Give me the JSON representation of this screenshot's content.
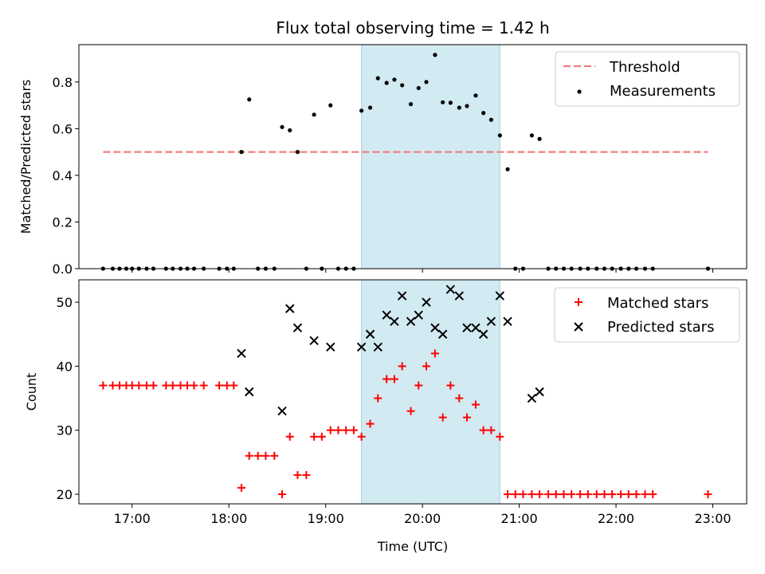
{
  "title": "Flux total observing time = 1.42 h",
  "colors": {
    "threshold": "#f08080",
    "measurement": "#000000",
    "matched": "#ff0000",
    "predicted": "#000000",
    "band": "#add8e6"
  },
  "chart_data": [
    {
      "type": "scatter",
      "name": "top",
      "ylabel": "Matched/Predicted stars",
      "xlim_hours": [
        16.45,
        23.35
      ],
      "ylim": [
        0,
        0.96
      ],
      "yticks": [
        0.0,
        0.2,
        0.4,
        0.6,
        0.8
      ],
      "ytick_labels": [
        "0.0",
        "0.2",
        "0.4",
        "0.6",
        "0.8"
      ],
      "shaded_band_hours": [
        19.37,
        20.8
      ],
      "threshold": {
        "label": "Threshold",
        "y": 0.5,
        "x_range_hours": [
          16.7,
          22.95
        ]
      },
      "legend": {
        "position": "top-right",
        "entries": [
          "Threshold",
          "Measurements"
        ]
      },
      "series": [
        {
          "name": "Measurements",
          "marker": "dot",
          "points": [
            [
              16.7,
              0
            ],
            [
              16.8,
              0
            ],
            [
              16.87,
              0
            ],
            [
              16.94,
              0
            ],
            [
              17.0,
              0
            ],
            [
              17.07,
              0
            ],
            [
              17.15,
              0
            ],
            [
              17.22,
              0
            ],
            [
              17.35,
              0
            ],
            [
              17.42,
              0
            ],
            [
              17.5,
              0
            ],
            [
              17.57,
              0
            ],
            [
              17.64,
              0
            ],
            [
              17.74,
              0
            ],
            [
              17.9,
              0
            ],
            [
              17.98,
              0
            ],
            [
              18.05,
              0
            ],
            [
              18.13,
              0.5
            ],
            [
              18.21,
              0.725
            ],
            [
              18.3,
              0
            ],
            [
              18.38,
              0
            ],
            [
              18.47,
              0
            ],
            [
              18.55,
              0.607
            ],
            [
              18.63,
              0.593
            ],
            [
              18.71,
              0.5
            ],
            [
              18.8,
              0
            ],
            [
              18.88,
              0.66
            ],
            [
              18.96,
              0
            ],
            [
              19.05,
              0.7
            ],
            [
              19.13,
              0
            ],
            [
              19.21,
              0
            ],
            [
              19.29,
              0
            ],
            [
              19.37,
              0.677
            ],
            [
              19.46,
              0.69
            ],
            [
              19.54,
              0.816
            ],
            [
              19.63,
              0.796
            ],
            [
              19.71,
              0.81
            ],
            [
              19.79,
              0.786
            ],
            [
              19.88,
              0.705
            ],
            [
              19.96,
              0.774
            ],
            [
              20.04,
              0.8
            ],
            [
              20.13,
              0.916
            ],
            [
              20.21,
              0.713
            ],
            [
              20.29,
              0.711
            ],
            [
              20.38,
              0.69
            ],
            [
              20.46,
              0.697
            ],
            [
              20.55,
              0.742
            ],
            [
              20.63,
              0.667
            ],
            [
              20.71,
              0.638
            ],
            [
              20.8,
              0.571
            ],
            [
              20.88,
              0.426
            ],
            [
              20.96,
              0
            ],
            [
              21.04,
              0
            ],
            [
              21.13,
              0.571
            ],
            [
              21.21,
              0.556
            ],
            [
              21.3,
              0
            ],
            [
              21.38,
              0
            ],
            [
              21.46,
              0
            ],
            [
              21.54,
              0
            ],
            [
              21.63,
              0
            ],
            [
              21.71,
              0
            ],
            [
              21.8,
              0
            ],
            [
              21.88,
              0
            ],
            [
              21.96,
              0
            ],
            [
              22.05,
              0
            ],
            [
              22.13,
              0
            ],
            [
              22.21,
              0
            ],
            [
              22.3,
              0
            ],
            [
              22.38,
              0
            ],
            [
              22.95,
              0
            ]
          ]
        }
      ]
    },
    {
      "type": "scatter",
      "name": "bottom",
      "xlabel": "Time (UTC)",
      "ylabel": "Count",
      "xlim_hours": [
        16.45,
        23.35
      ],
      "ylim": [
        18.5,
        53.5
      ],
      "yticks": [
        20,
        30,
        40,
        50
      ],
      "ytick_labels": [
        "20",
        "30",
        "40",
        "50"
      ],
      "xticks_hours": [
        17,
        18,
        19,
        20,
        21,
        22,
        23
      ],
      "xtick_labels": [
        "17:00",
        "18:00",
        "19:00",
        "20:00",
        "21:00",
        "22:00",
        "23:00"
      ],
      "shaded_band_hours": [
        19.37,
        20.8
      ],
      "legend": {
        "position": "top-right",
        "entries": [
          "Matched stars",
          "Predicted stars"
        ]
      },
      "series": [
        {
          "name": "Matched stars",
          "marker": "plus",
          "points": [
            [
              16.7,
              37
            ],
            [
              16.8,
              37
            ],
            [
              16.87,
              37
            ],
            [
              16.94,
              37
            ],
            [
              17.0,
              37
            ],
            [
              17.07,
              37
            ],
            [
              17.15,
              37
            ],
            [
              17.22,
              37
            ],
            [
              17.35,
              37
            ],
            [
              17.42,
              37
            ],
            [
              17.5,
              37
            ],
            [
              17.57,
              37
            ],
            [
              17.64,
              37
            ],
            [
              17.74,
              37
            ],
            [
              17.9,
              37
            ],
            [
              17.98,
              37
            ],
            [
              18.05,
              37
            ],
            [
              18.13,
              21
            ],
            [
              18.21,
              26
            ],
            [
              18.3,
              26
            ],
            [
              18.38,
              26
            ],
            [
              18.47,
              26
            ],
            [
              18.55,
              20
            ],
            [
              18.63,
              29
            ],
            [
              18.71,
              23
            ],
            [
              18.8,
              23
            ],
            [
              18.88,
              29
            ],
            [
              18.96,
              29
            ],
            [
              19.05,
              30
            ],
            [
              19.13,
              30
            ],
            [
              19.21,
              30
            ],
            [
              19.29,
              30
            ],
            [
              19.37,
              29
            ],
            [
              19.46,
              31
            ],
            [
              19.54,
              35
            ],
            [
              19.63,
              38
            ],
            [
              19.71,
              38
            ],
            [
              19.79,
              40
            ],
            [
              19.88,
              33
            ],
            [
              19.96,
              37
            ],
            [
              20.04,
              40
            ],
            [
              20.13,
              42
            ],
            [
              20.21,
              32
            ],
            [
              20.29,
              37
            ],
            [
              20.38,
              35
            ],
            [
              20.46,
              32
            ],
            [
              20.55,
              34
            ],
            [
              20.63,
              30
            ],
            [
              20.71,
              30
            ],
            [
              20.8,
              29
            ],
            [
              20.88,
              20
            ],
            [
              20.96,
              20
            ],
            [
              21.04,
              20
            ],
            [
              21.13,
              20
            ],
            [
              21.21,
              20
            ],
            [
              21.3,
              20
            ],
            [
              21.38,
              20
            ],
            [
              21.46,
              20
            ],
            [
              21.54,
              20
            ],
            [
              21.63,
              20
            ],
            [
              21.71,
              20
            ],
            [
              21.8,
              20
            ],
            [
              21.88,
              20
            ],
            [
              21.96,
              20
            ],
            [
              22.05,
              20
            ],
            [
              22.13,
              20
            ],
            [
              22.21,
              20
            ],
            [
              22.3,
              20
            ],
            [
              22.38,
              20
            ],
            [
              22.95,
              20
            ]
          ]
        },
        {
          "name": "Predicted stars",
          "marker": "x",
          "points": [
            [
              18.13,
              42
            ],
            [
              18.21,
              36
            ],
            [
              18.55,
              33
            ],
            [
              18.63,
              49
            ],
            [
              18.71,
              46
            ],
            [
              18.88,
              44
            ],
            [
              19.05,
              43
            ],
            [
              19.37,
              43
            ],
            [
              19.46,
              45
            ],
            [
              19.54,
              43
            ],
            [
              19.63,
              48
            ],
            [
              19.71,
              47
            ],
            [
              19.79,
              51
            ],
            [
              19.88,
              47
            ],
            [
              19.96,
              48
            ],
            [
              20.04,
              50
            ],
            [
              20.13,
              46
            ],
            [
              20.21,
              45
            ],
            [
              20.29,
              52
            ],
            [
              20.38,
              51
            ],
            [
              20.46,
              46
            ],
            [
              20.55,
              46
            ],
            [
              20.63,
              45
            ],
            [
              20.71,
              47
            ],
            [
              20.8,
              51
            ],
            [
              20.88,
              47
            ],
            [
              21.13,
              35
            ],
            [
              21.21,
              36
            ]
          ]
        }
      ]
    }
  ]
}
